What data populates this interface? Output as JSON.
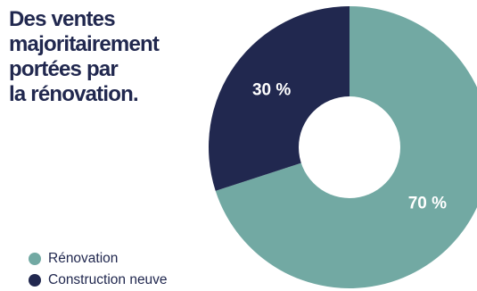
{
  "chart_data": {
    "type": "pie",
    "title": "Des ventes\nmajoritairement\nportées par\nla rénovation.",
    "legend_position": "bottom-left",
    "series": [
      {
        "name": "Rénovation",
        "value": 70,
        "label": "70 %",
        "color": "#72a9a3"
      },
      {
        "name": "Construction neuve",
        "value": 30,
        "label": "30 %",
        "color": "#21284f"
      }
    ]
  }
}
